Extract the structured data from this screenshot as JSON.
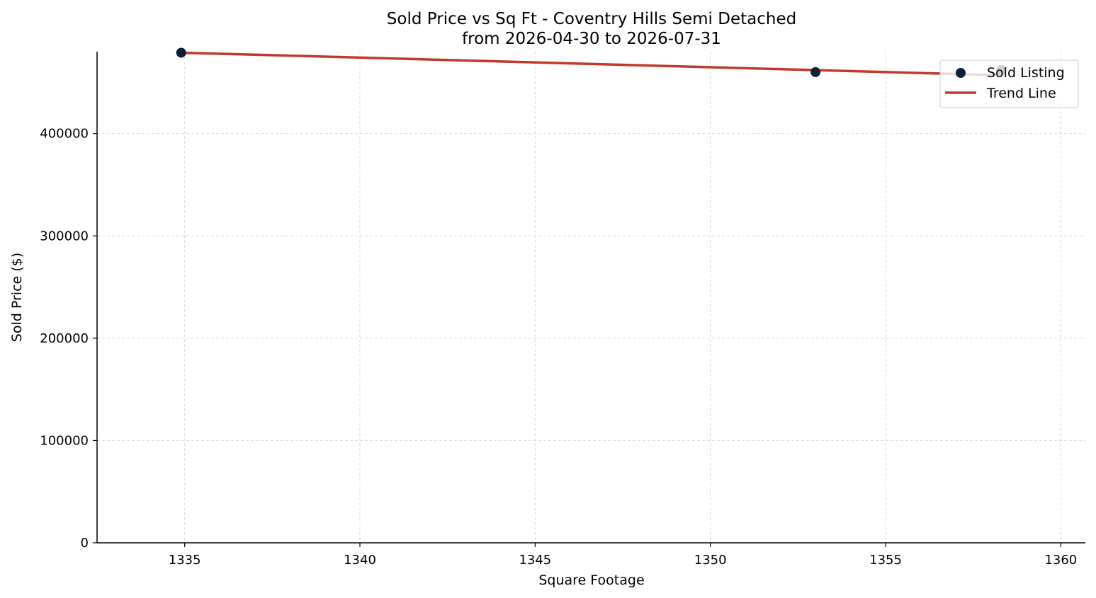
{
  "chart_data": {
    "type": "scatter",
    "title": "Sold Price vs Sq Ft - Coventry Hills Semi Detached",
    "subtitle": "from 2026-04-30 to 2026-07-31",
    "xlabel": "Square Footage",
    "ylabel": "Sold Price ($)",
    "xlim": [
      1332.5,
      1360.7
    ],
    "ylim": [
      0,
      480000
    ],
    "x_ticks": [
      1335,
      1340,
      1345,
      1350,
      1355,
      1360
    ],
    "y_ticks": [
      0,
      100000,
      200000,
      300000,
      400000
    ],
    "x_tick_labels": [
      "1335",
      "1340",
      "1345",
      "1350",
      "1355",
      "1360"
    ],
    "y_tick_labels": [
      "0",
      "100000",
      "200000",
      "300000",
      "400000"
    ],
    "grid": true,
    "legend_position": "top-right",
    "series": [
      {
        "name": "Sold Listing",
        "kind": "scatter",
        "color": "#0d1f3a",
        "points": [
          {
            "x": 1334.9,
            "y": 479000
          },
          {
            "x": 1353.0,
            "y": 460000
          },
          {
            "x": 1358.3,
            "y": 462000
          }
        ]
      },
      {
        "name": "Trend Line",
        "kind": "line",
        "color": "#c0392b",
        "points": [
          {
            "x": 1334.9,
            "y": 479000
          },
          {
            "x": 1358.3,
            "y": 457000
          }
        ]
      }
    ]
  }
}
